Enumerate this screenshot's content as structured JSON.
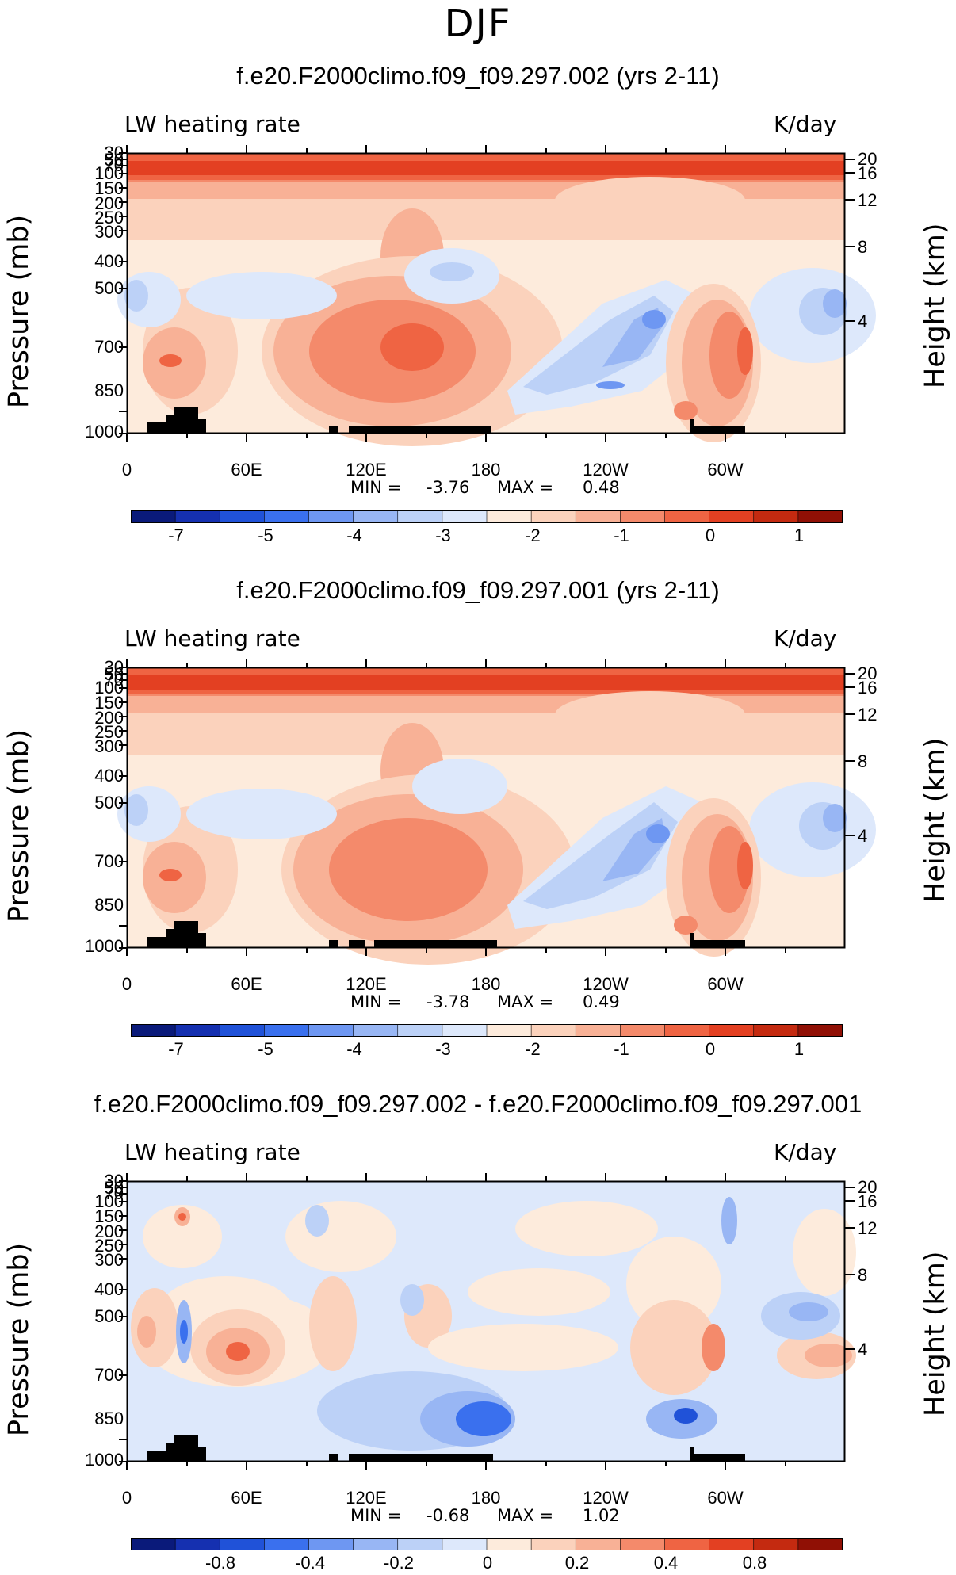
{
  "figure": {
    "title": "DJF"
  },
  "palette": [
    "#0a1a7a",
    "#1530b0",
    "#2052d8",
    "#3a70ee",
    "#6e97f2",
    "#98b6f4",
    "#bcd1f7",
    "#dde8fb",
    "#fdebdc",
    "#fbd2bc",
    "#f8b196",
    "#f48a6b",
    "#ef6443",
    "#e34022",
    "#c42a10",
    "#901005"
  ],
  "chart_data": [
    {
      "type": "contour",
      "title": "f.e20.F2000climo.f09_f09.297.002 (yrs 2-11)",
      "variable_label": "LW heating rate",
      "units": "K/day",
      "ylabel_left": "Pressure (mb)",
      "ylabel_right": "Height (km)",
      "x_ticks": [
        "0",
        "60E",
        "120E",
        "180",
        "120W",
        "60W"
      ],
      "pressure_ticks": [
        "30",
        "50",
        "70",
        "100",
        "150",
        "200",
        "250",
        "300",
        "400",
        "500",
        "700",
        "850",
        "1000"
      ],
      "height_ticks": [
        "20",
        "16",
        "12",
        "8",
        "4"
      ],
      "min_label": "MIN =",
      "min": "-3.76",
      "max_label": "MAX =",
      "max": "0.48",
      "colorbar_ticks": [
        "-7",
        "-5",
        "-4",
        "-3",
        "-2",
        "-1",
        "0",
        "1"
      ]
    },
    {
      "type": "contour",
      "title": "f.e20.F2000climo.f09_f09.297.001 (yrs 2-11)",
      "variable_label": "LW heating rate",
      "units": "K/day",
      "ylabel_left": "Pressure (mb)",
      "ylabel_right": "Height (km)",
      "x_ticks": [
        "0",
        "60E",
        "120E",
        "180",
        "120W",
        "60W"
      ],
      "pressure_ticks": [
        "30",
        "50",
        "70",
        "100",
        "150",
        "200",
        "250",
        "300",
        "400",
        "500",
        "700",
        "850",
        "1000"
      ],
      "height_ticks": [
        "20",
        "16",
        "12",
        "8",
        "4"
      ],
      "min_label": "MIN =",
      "min": "-3.78",
      "max_label": "MAX =",
      "max": "0.49",
      "colorbar_ticks": [
        "-7",
        "-5",
        "-4",
        "-3",
        "-2",
        "-1",
        "0",
        "1"
      ]
    },
    {
      "type": "contour",
      "title": "f.e20.F2000climo.f09_f09.297.002 - f.e20.F2000climo.f09_f09.297.001",
      "variable_label": "LW heating rate",
      "units": "K/day",
      "ylabel_left": "Pressure (mb)",
      "ylabel_right": "Height (km)",
      "x_ticks": [
        "0",
        "60E",
        "120E",
        "180",
        "120W",
        "60W"
      ],
      "pressure_ticks": [
        "30",
        "50",
        "70",
        "100",
        "150",
        "200",
        "250",
        "300",
        "400",
        "500",
        "700",
        "850",
        "1000"
      ],
      "height_ticks": [
        "20",
        "16",
        "12",
        "8",
        "4"
      ],
      "min_label": "MIN =",
      "min": "-0.68",
      "max_label": "MAX =",
      "max": "1.02",
      "colorbar_ticks": [
        "-0.8",
        "-0.4",
        "-0.2",
        "0",
        "0.2",
        "0.4",
        "0.8"
      ]
    }
  ]
}
